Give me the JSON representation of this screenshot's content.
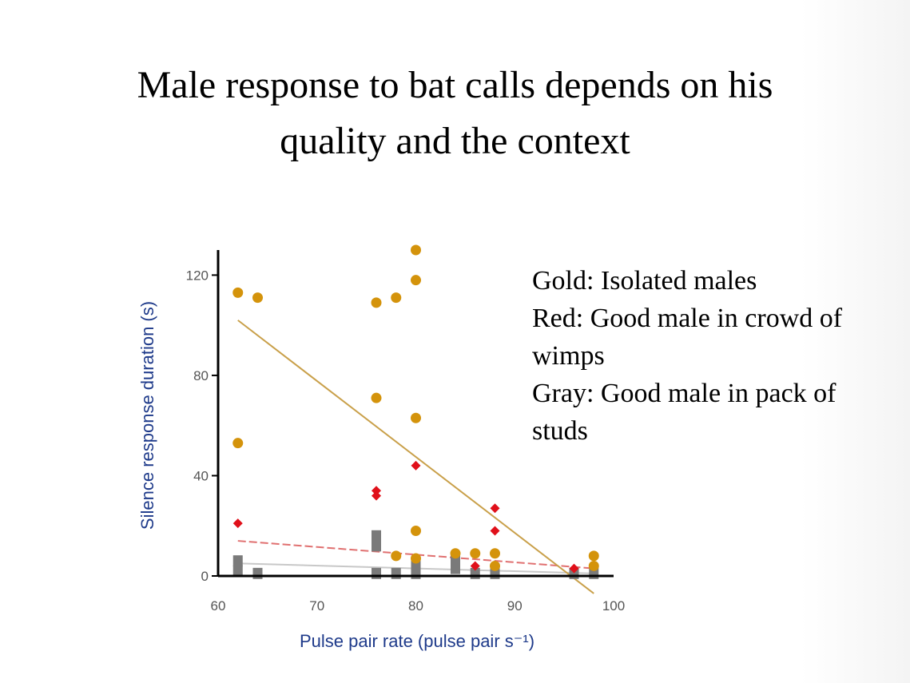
{
  "slide": {
    "title_line1": "Male response to bat calls depends on his",
    "title_line2": "quality and the context"
  },
  "notes": {
    "gold": "Gold: Isolated males",
    "red_line1": "Red: Good male in crowd of",
    "red_line2": "wimps",
    "gray_line1": "Gray: Good male in pack of",
    "gray_line2": "studs"
  },
  "chart_data": {
    "type": "scatter",
    "xlabel": "Pulse pair rate (pulse pair s⁻¹)",
    "ylabel": "Silence response duration (s)",
    "xlim": [
      60,
      100
    ],
    "ylim": [
      0,
      130
    ],
    "x_ticks": [
      60,
      70,
      80,
      90,
      100
    ],
    "y_ticks": [
      0,
      40,
      80,
      120
    ],
    "colors": {
      "gold": "#d4930b",
      "red": "#e0101a",
      "gray": "#7a7a7a",
      "gold_line": "#c9a04a",
      "red_line": "#e07070",
      "gray_line": "#c8c8c8"
    },
    "series": [
      {
        "name": "Isolated males",
        "color_key": "gold",
        "marker": "circle",
        "points": [
          [
            62,
            113
          ],
          [
            62,
            53
          ],
          [
            64,
            111
          ],
          [
            76,
            109
          ],
          [
            76,
            71
          ],
          [
            78,
            111
          ],
          [
            78,
            8
          ],
          [
            80,
            130
          ],
          [
            80,
            118
          ],
          [
            80,
            63
          ],
          [
            80,
            18
          ],
          [
            80,
            7
          ],
          [
            84,
            9
          ],
          [
            86,
            9
          ],
          [
            88,
            9
          ],
          [
            88,
            4
          ],
          [
            98,
            8
          ],
          [
            98,
            4
          ]
        ],
        "trend": [
          [
            62,
            102
          ],
          [
            98,
            -7
          ]
        ]
      },
      {
        "name": "Good male in crowd of wimps",
        "color_key": "red",
        "marker": "diamond",
        "points": [
          [
            62,
            21
          ],
          [
            76,
            34
          ],
          [
            76,
            32
          ],
          [
            80,
            44
          ],
          [
            86,
            4
          ],
          [
            88,
            27
          ],
          [
            88,
            18
          ],
          [
            96,
            3
          ]
        ],
        "trend": [
          [
            62,
            14
          ],
          [
            98,
            3
          ]
        ]
      },
      {
        "name": "Good male in pack of studs",
        "color_key": "gray",
        "marker": "square",
        "points": [
          [
            62,
            6
          ],
          [
            62,
            2
          ],
          [
            64,
            1
          ],
          [
            76,
            16
          ],
          [
            76,
            12
          ],
          [
            76,
            1
          ],
          [
            78,
            1
          ],
          [
            80,
            4
          ],
          [
            80,
            1
          ],
          [
            84,
            6
          ],
          [
            84,
            3
          ],
          [
            86,
            1
          ],
          [
            88,
            1
          ],
          [
            96,
            1
          ],
          [
            98,
            1
          ]
        ],
        "trend": [
          [
            62,
            5
          ],
          [
            98,
            1
          ]
        ]
      }
    ]
  }
}
